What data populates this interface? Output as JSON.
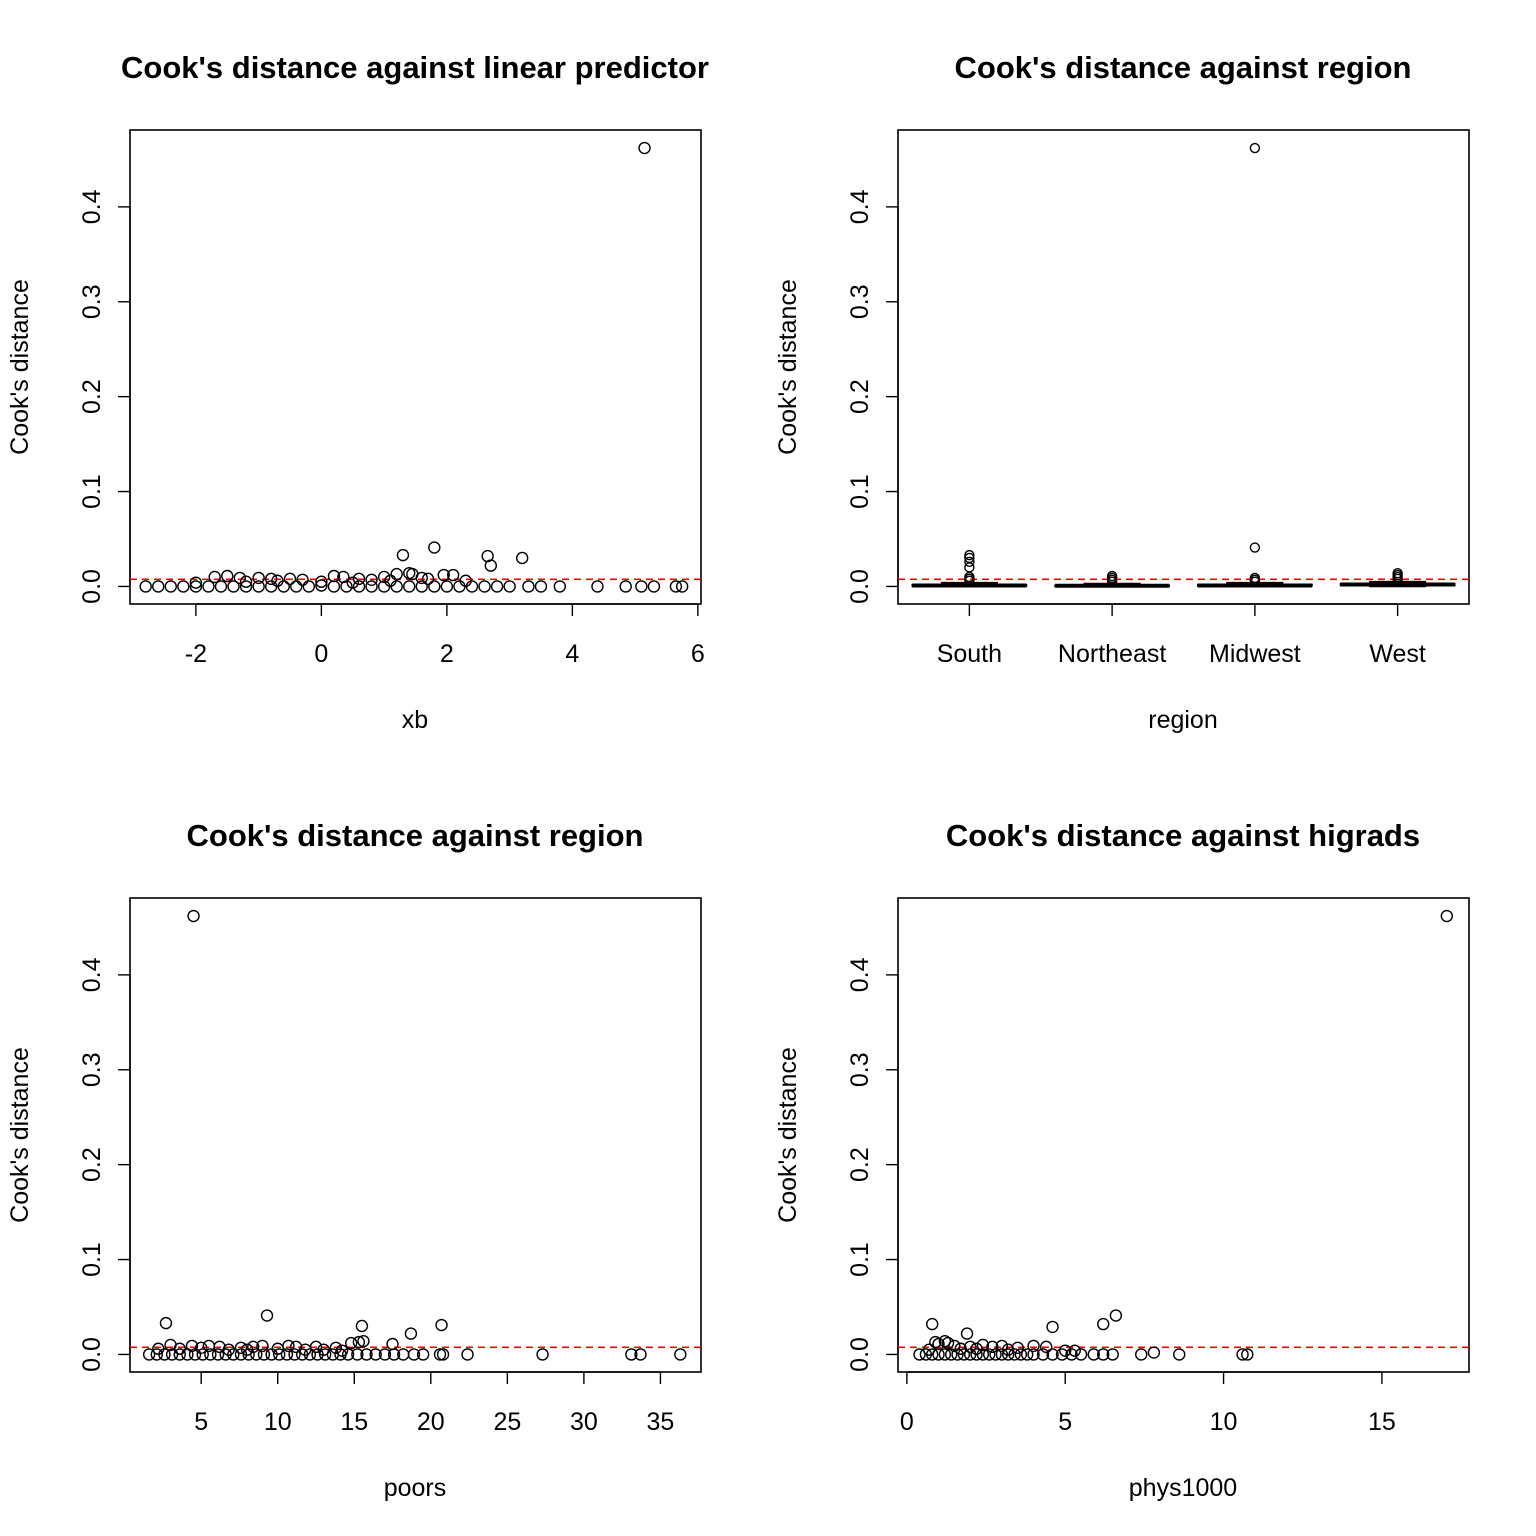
{
  "colors": {
    "reference_line": "#ff0000",
    "points": "#000000"
  },
  "chart_data": [
    {
      "type": "scatter",
      "title": "Cook's distance against linear predictor",
      "xlabel": "xb",
      "ylabel": "Cook's distance",
      "xlim": [
        -3.05,
        6.05
      ],
      "ylim": [
        -0.0185,
        0.481
      ],
      "xticks": [
        -2,
        0,
        2,
        4,
        6
      ],
      "yticks": [
        0.0,
        0.1,
        0.2,
        0.3,
        0.4
      ],
      "ytick_labels": [
        "0.0",
        "0.1",
        "0.2",
        "0.3",
        "0.4"
      ],
      "reference_line_y": 0.0075,
      "grid": false,
      "points": [
        [
          5.15,
          0.462
        ],
        [
          1.8,
          0.041
        ],
        [
          1.3,
          0.033
        ],
        [
          2.65,
          0.032
        ],
        [
          3.2,
          0.03
        ],
        [
          2.7,
          0.022
        ],
        [
          1.2,
          0.013
        ],
        [
          1.4,
          0.014
        ],
        [
          1.45,
          0.013
        ],
        [
          1.95,
          0.012
        ],
        [
          2.1,
          0.012
        ],
        [
          1.0,
          0.01
        ],
        [
          0.2,
          0.011
        ],
        [
          0.35,
          0.01
        ],
        [
          -1.7,
          0.01
        ],
        [
          -1.5,
          0.011
        ],
        [
          -1.3,
          0.009
        ],
        [
          -1.0,
          0.009
        ],
        [
          -0.8,
          0.008
        ],
        [
          -0.5,
          0.008
        ],
        [
          -0.3,
          0.007
        ],
        [
          0.6,
          0.008
        ],
        [
          0.8,
          0.007
        ],
        [
          1.6,
          0.009
        ],
        [
          1.7,
          0.008
        ],
        [
          2.3,
          0.006
        ],
        [
          -2.0,
          0.004
        ],
        [
          -1.2,
          0.005
        ],
        [
          -0.7,
          0.006
        ],
        [
          0.0,
          0.005
        ],
        [
          0.5,
          0.004
        ],
        [
          1.1,
          0.006
        ],
        [
          -2.8,
          0.0
        ],
        [
          -2.6,
          0.0
        ],
        [
          -2.4,
          0.0
        ],
        [
          -2.2,
          0.0
        ],
        [
          -2.0,
          0.0
        ],
        [
          -1.8,
          0.0
        ],
        [
          -1.6,
          0.0
        ],
        [
          -1.4,
          0.0
        ],
        [
          -1.2,
          0.0
        ],
        [
          -1.0,
          0.0
        ],
        [
          -0.8,
          0.0
        ],
        [
          -0.6,
          0.0
        ],
        [
          -0.4,
          0.0
        ],
        [
          -0.2,
          0.0
        ],
        [
          0.0,
          0.001
        ],
        [
          0.2,
          0.0
        ],
        [
          0.4,
          0.0
        ],
        [
          0.6,
          0.0
        ],
        [
          0.8,
          0.0
        ],
        [
          1.0,
          0.0
        ],
        [
          1.2,
          0.0
        ],
        [
          1.4,
          0.0
        ],
        [
          1.6,
          0.0
        ],
        [
          1.8,
          0.0
        ],
        [
          2.0,
          0.0
        ],
        [
          2.2,
          0.0
        ],
        [
          2.4,
          0.0
        ],
        [
          2.6,
          0.0
        ],
        [
          2.8,
          0.0
        ],
        [
          3.0,
          0.0
        ],
        [
          3.3,
          0.0
        ],
        [
          3.5,
          0.0
        ],
        [
          3.8,
          0.0
        ],
        [
          4.4,
          0.0
        ],
        [
          4.85,
          0.0
        ],
        [
          5.1,
          0.0
        ],
        [
          5.3,
          0.0
        ],
        [
          5.65,
          0.0
        ],
        [
          5.75,
          0.0
        ]
      ]
    },
    {
      "type": "box",
      "title": "Cook's distance against region",
      "xlabel": "region",
      "ylabel": "Cook's distance",
      "ylim": [
        -0.0185,
        0.481
      ],
      "yticks": [
        0.0,
        0.1,
        0.2,
        0.3,
        0.4
      ],
      "ytick_labels": [
        "0.0",
        "0.1",
        "0.2",
        "0.3",
        "0.4"
      ],
      "reference_line_y": 0.0075,
      "grid": false,
      "categories": [
        "South",
        "Northeast",
        "Midwest",
        "West"
      ],
      "boxes": [
        {
          "category": "South",
          "low": 0.0,
          "q1": 0.0005,
          "median": 0.001,
          "q3": 0.0018,
          "high": 0.004,
          "outliers": [
            0.033,
            0.03,
            0.026,
            0.02,
            0.01,
            0.008,
            0.006
          ]
        },
        {
          "category": "Northeast",
          "low": 0.0,
          "q1": 0.0003,
          "median": 0.0007,
          "q3": 0.0012,
          "high": 0.003,
          "outliers": [
            0.011,
            0.009,
            0.007,
            0.005
          ]
        },
        {
          "category": "Midwest",
          "low": 0.0,
          "q1": 0.0005,
          "median": 0.001,
          "q3": 0.002,
          "high": 0.004,
          "outliers": [
            0.462,
            0.041,
            0.009,
            0.007,
            0.005
          ]
        },
        {
          "category": "West",
          "low": 0.0,
          "q1": 0.001,
          "median": 0.002,
          "q3": 0.003,
          "high": 0.005,
          "outliers": [
            0.014,
            0.012,
            0.01,
            0.008
          ]
        }
      ]
    },
    {
      "type": "scatter",
      "title": "Cook's distance against region",
      "xlabel": "poors",
      "ylabel": "Cook's distance",
      "xlim": [
        0.35,
        37.65
      ],
      "ylim": [
        -0.0185,
        0.481
      ],
      "xticks": [
        5,
        10,
        15,
        20,
        25,
        30,
        35
      ],
      "yticks": [
        0.0,
        0.1,
        0.2,
        0.3,
        0.4
      ],
      "ytick_labels": [
        "0.0",
        "0.1",
        "0.2",
        "0.3",
        "0.4"
      ],
      "reference_line_y": 0.0075,
      "grid": false,
      "points": [
        [
          4.5,
          0.462
        ],
        [
          9.3,
          0.041
        ],
        [
          2.7,
          0.033
        ],
        [
          20.7,
          0.031
        ],
        [
          15.5,
          0.03
        ],
        [
          18.7,
          0.022
        ],
        [
          15.3,
          0.013
        ],
        [
          15.6,
          0.014
        ],
        [
          14.8,
          0.012
        ],
        [
          17.5,
          0.011
        ],
        [
          3.0,
          0.01
        ],
        [
          5.5,
          0.009
        ],
        [
          4.4,
          0.009
        ],
        [
          6.2,
          0.008
        ],
        [
          7.6,
          0.007
        ],
        [
          8.4,
          0.008
        ],
        [
          9.0,
          0.009
        ],
        [
          10.7,
          0.009
        ],
        [
          11.2,
          0.008
        ],
        [
          12.5,
          0.008
        ],
        [
          13.8,
          0.007
        ],
        [
          2.2,
          0.006
        ],
        [
          3.6,
          0.006
        ],
        [
          5.0,
          0.007
        ],
        [
          6.8,
          0.005
        ],
        [
          8.0,
          0.005
        ],
        [
          10.0,
          0.006
        ],
        [
          11.8,
          0.005
        ],
        [
          13.0,
          0.005
        ],
        [
          14.2,
          0.004
        ],
        [
          1.6,
          0.0
        ],
        [
          2.1,
          0.0
        ],
        [
          2.6,
          0.0
        ],
        [
          3.1,
          0.0
        ],
        [
          3.6,
          0.0
        ],
        [
          4.1,
          0.0
        ],
        [
          4.6,
          0.0
        ],
        [
          5.1,
          0.0
        ],
        [
          5.6,
          0.0
        ],
        [
          6.1,
          0.0
        ],
        [
          6.6,
          0.0
        ],
        [
          7.1,
          0.0
        ],
        [
          7.6,
          0.0
        ],
        [
          8.1,
          0.0
        ],
        [
          8.6,
          0.0
        ],
        [
          9.1,
          0.0
        ],
        [
          9.6,
          0.0
        ],
        [
          10.1,
          0.0
        ],
        [
          10.6,
          0.0
        ],
        [
          11.1,
          0.0
        ],
        [
          11.6,
          0.0
        ],
        [
          12.1,
          0.0
        ],
        [
          12.6,
          0.0
        ],
        [
          13.1,
          0.0
        ],
        [
          13.6,
          0.0
        ],
        [
          14.1,
          0.0
        ],
        [
          14.6,
          0.0
        ],
        [
          15.2,
          0.0
        ],
        [
          15.8,
          0.0
        ],
        [
          16.4,
          0.0
        ],
        [
          17.0,
          0.0
        ],
        [
          17.6,
          0.0
        ],
        [
          18.2,
          0.0
        ],
        [
          18.9,
          0.0
        ],
        [
          19.5,
          0.0
        ],
        [
          20.6,
          0.0
        ],
        [
          20.8,
          0.0
        ],
        [
          22.4,
          0.0
        ],
        [
          27.3,
          0.0
        ],
        [
          33.1,
          0.0
        ],
        [
          33.7,
          0.0
        ],
        [
          36.3,
          0.0
        ]
      ]
    },
    {
      "type": "scatter",
      "title": "Cook's distance against higrads",
      "xlabel": "phys1000",
      "ylabel": "Cook's distance",
      "xlim": [
        -0.28,
        17.75
      ],
      "ylim": [
        -0.0185,
        0.481
      ],
      "xticks": [
        0,
        5,
        10,
        15
      ],
      "yticks": [
        0.0,
        0.1,
        0.2,
        0.3,
        0.4
      ],
      "ytick_labels": [
        "0.0",
        "0.1",
        "0.2",
        "0.3",
        "0.4"
      ],
      "reference_line_y": 0.0075,
      "grid": false,
      "points": [
        [
          17.05,
          0.462
        ],
        [
          6.6,
          0.041
        ],
        [
          6.2,
          0.032
        ],
        [
          0.8,
          0.032
        ],
        [
          4.6,
          0.029
        ],
        [
          1.9,
          0.022
        ],
        [
          0.9,
          0.013
        ],
        [
          1.2,
          0.014
        ],
        [
          1.3,
          0.012
        ],
        [
          1.0,
          0.011
        ],
        [
          2.4,
          0.01
        ],
        [
          3.0,
          0.009
        ],
        [
          4.0,
          0.009
        ],
        [
          4.4,
          0.008
        ],
        [
          1.5,
          0.009
        ],
        [
          2.0,
          0.008
        ],
        [
          2.7,
          0.008
        ],
        [
          3.5,
          0.007
        ],
        [
          1.7,
          0.006
        ],
        [
          2.2,
          0.006
        ],
        [
          3.2,
          0.005
        ],
        [
          5.0,
          0.004
        ],
        [
          5.3,
          0.004
        ],
        [
          0.7,
          0.005
        ],
        [
          0.4,
          0.0
        ],
        [
          0.6,
          0.0
        ],
        [
          0.8,
          0.0
        ],
        [
          1.0,
          0.0
        ],
        [
          1.2,
          0.0
        ],
        [
          1.4,
          0.0
        ],
        [
          1.6,
          0.0
        ],
        [
          1.8,
          0.0
        ],
        [
          2.0,
          0.0
        ],
        [
          2.2,
          0.0
        ],
        [
          2.4,
          0.0
        ],
        [
          2.6,
          0.0
        ],
        [
          2.8,
          0.0
        ],
        [
          3.0,
          0.0
        ],
        [
          3.2,
          0.0
        ],
        [
          3.4,
          0.0
        ],
        [
          3.6,
          0.0
        ],
        [
          3.8,
          0.0
        ],
        [
          4.0,
          0.0
        ],
        [
          4.3,
          0.0
        ],
        [
          4.6,
          0.0
        ],
        [
          4.9,
          0.0
        ],
        [
          5.2,
          0.0
        ],
        [
          5.5,
          0.0
        ],
        [
          5.9,
          0.0
        ],
        [
          6.2,
          0.0
        ],
        [
          6.5,
          0.0
        ],
        [
          7.4,
          0.0
        ],
        [
          7.8,
          0.002
        ],
        [
          8.6,
          0.0
        ],
        [
          10.6,
          0.0
        ],
        [
          10.75,
          0.0
        ]
      ]
    }
  ]
}
